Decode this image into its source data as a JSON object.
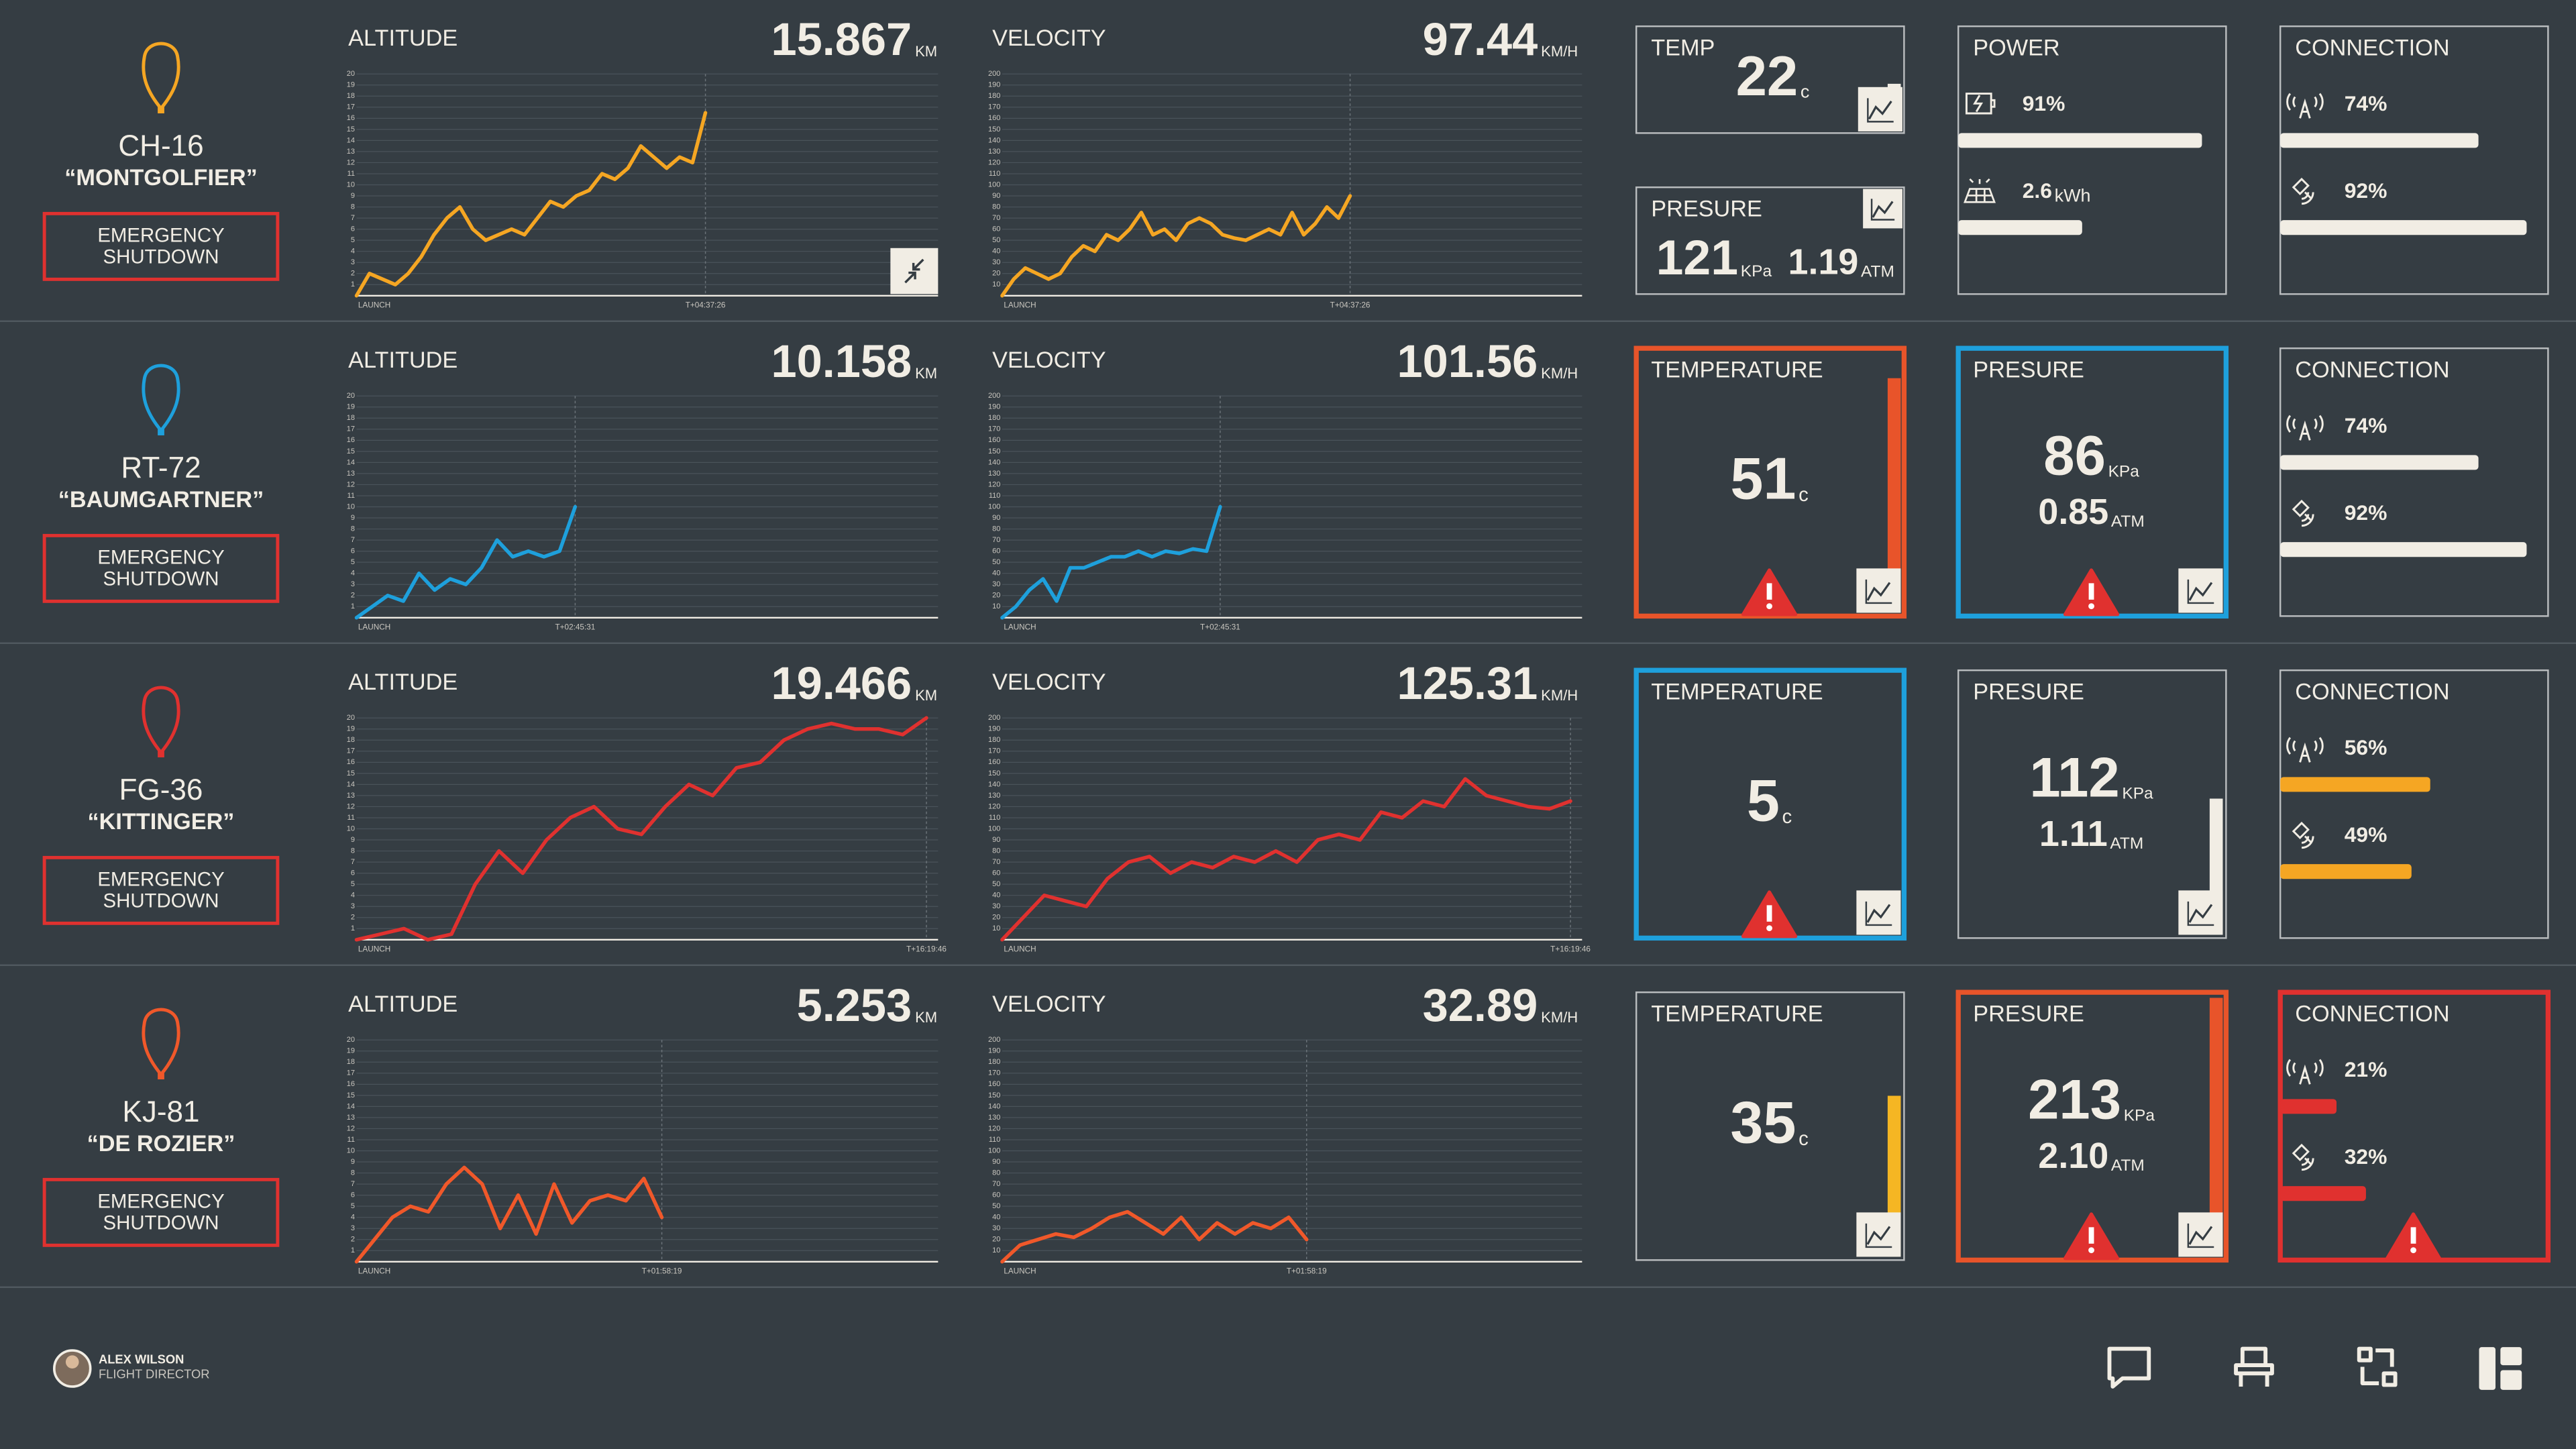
{
  "labels": {
    "altitude": "ALTITUDE",
    "velocity": "VELOCITY",
    "emergency": [
      "EMERGENCY",
      "SHUTDOWN"
    ],
    "launch": "LAUNCH",
    "power": "POWER",
    "connection": "CONNECTION"
  },
  "units": {
    "altitude": "KM",
    "velocity": "KM/H",
    "temperature": "c",
    "kpa": "KPa",
    "atm": "ATM",
    "energy": "kWh"
  },
  "axes": {
    "altitude": {
      "ylim": [
        0,
        20
      ],
      "yticks": [
        1,
        2,
        3,
        4,
        5,
        6,
        7,
        8,
        9,
        10,
        11,
        12,
        13,
        14,
        15,
        16,
        17,
        18,
        19,
        20
      ]
    },
    "velocity": {
      "ylim": [
        0,
        200
      ],
      "yticks": [
        10,
        20,
        30,
        40,
        50,
        60,
        70,
        80,
        90,
        100,
        110,
        120,
        130,
        140,
        150,
        160,
        170,
        180,
        190,
        200
      ]
    }
  },
  "rows": [
    {
      "id": "CH-16",
      "name": "“MONTGOLFIER”",
      "color": "#f5a623",
      "compact": true,
      "altitude": 15.867,
      "velocity": 97.44,
      "elapsed": "T+04:37:26",
      "altitude_series": [
        0,
        2,
        1.5,
        1,
        2,
        3.5,
        5.5,
        7,
        8,
        6,
        5,
        5.5,
        6,
        5.5,
        7,
        8.5,
        8,
        9,
        9.5,
        11,
        10.5,
        11.5,
        13.5,
        12.5,
        11.5,
        12.5,
        12,
        16.5
      ],
      "velocity_series": [
        0,
        15,
        25,
        20,
        15,
        20,
        35,
        45,
        40,
        55,
        50,
        60,
        75,
        55,
        60,
        50,
        65,
        70,
        65,
        55,
        52,
        50,
        55,
        60,
        55,
        75,
        55,
        65,
        80,
        70,
        90
      ],
      "temperature": {
        "title": "TEMP",
        "value": 22,
        "gauge_color": "#f1ede4"
      },
      "pressure": {
        "title": "PRESURE",
        "kpa": 121,
        "atm": "1.19"
      },
      "power": {
        "battery": {
          "value": 91,
          "label": "91%"
        },
        "energy": 2.6
      },
      "connection": {
        "bar_color": "#f1ede4",
        "signal": {
          "value": 74,
          "label": "74%"
        },
        "satellite": {
          "value": 92,
          "label": "92%"
        }
      }
    },
    {
      "id": "RT-72",
      "name": "“BAUMGARTNER”",
      "color": "#1ea0dc",
      "altitude": 10.158,
      "velocity": 101.56,
      "elapsed": "T+02:45:31",
      "altitude_series": [
        0,
        1,
        2,
        1.5,
        4,
        2.5,
        3.5,
        3,
        4.5,
        7,
        5.5,
        6,
        5.5,
        6,
        10
      ],
      "velocity_series": [
        0,
        10,
        25,
        35,
        15,
        45,
        45,
        50,
        55,
        55,
        60,
        55,
        60,
        58,
        62,
        60,
        100
      ],
      "temperature": {
        "title": "TEMPERATURE",
        "value": 51,
        "border": "#e8542a",
        "alert": true,
        "gauge_color": "#e8542a"
      },
      "pressure": {
        "title": "PRESURE",
        "kpa": 86,
        "atm": "0.85",
        "border": "#1ea0dc",
        "alert": true
      },
      "connection": {
        "bar_color": "#f1ede4",
        "signal": {
          "value": 74,
          "label": "74%"
        },
        "satellite": {
          "value": 92,
          "label": "92%"
        }
      }
    },
    {
      "id": "FG-36",
      "name": "“KITTINGER”",
      "color": "#e0312f",
      "altitude": 19.466,
      "velocity": 125.31,
      "elapsed": "T+16:19:46",
      "altitude_series": [
        0,
        0.5,
        1,
        0,
        0.5,
        5,
        8,
        6,
        9,
        11,
        12,
        10,
        9.5,
        12,
        14,
        13,
        15.5,
        16,
        18,
        19,
        19.5,
        19,
        19,
        18.5,
        20
      ],
      "velocity_series": [
        0,
        20,
        40,
        35,
        30,
        55,
        70,
        75,
        60,
        70,
        65,
        75,
        70,
        80,
        70,
        90,
        95,
        90,
        115,
        110,
        125,
        120,
        145,
        130,
        125,
        120,
        118,
        125
      ],
      "temperature": {
        "title": "TEMPERATURE",
        "value": 5,
        "border": "#1ea0dc",
        "alert": true,
        "gauge_color": "#1ea0dc"
      },
      "pressure": {
        "title": "PRESURE",
        "kpa": 112,
        "atm": "1.11",
        "gauge_color": "#f1ede4"
      },
      "connection": {
        "bar_color": "#f5a623",
        "signal": {
          "value": 56,
          "label": "56%"
        },
        "satellite": {
          "value": 49,
          "label": "49%"
        }
      }
    },
    {
      "id": "KJ-81",
      "name": "“DE ROZIER”",
      "color": "#f0582a",
      "altitude": 5.253,
      "velocity": 32.89,
      "elapsed": "T+01:58:19",
      "altitude_series": [
        0,
        2,
        4,
        5,
        4.5,
        7,
        8.5,
        7,
        3,
        6,
        2.5,
        7,
        3.5,
        5.5,
        6,
        5.5,
        7.5,
        4
      ],
      "velocity_series": [
        0,
        15,
        20,
        25,
        22,
        30,
        40,
        45,
        35,
        25,
        40,
        20,
        35,
        25,
        35,
        30,
        40,
        20
      ],
      "temperature": {
        "title": "TEMPERATURE",
        "value": 35,
        "gauge_color": "#f5b623"
      },
      "pressure": {
        "title": "PRESURE",
        "kpa": 213,
        "atm": "2.10",
        "border": "#e8542a",
        "alert": true,
        "gauge_color": "#e8542a"
      },
      "connection": {
        "bar_color": "#e0312f",
        "border": "#e0312f",
        "alert": true,
        "signal": {
          "value": 21,
          "label": "21%"
        },
        "satellite": {
          "value": 32,
          "label": "32%"
        }
      }
    }
  ],
  "user": {
    "name": "ALEX WILSON",
    "role": "FLIGHT DIRECTOR"
  }
}
